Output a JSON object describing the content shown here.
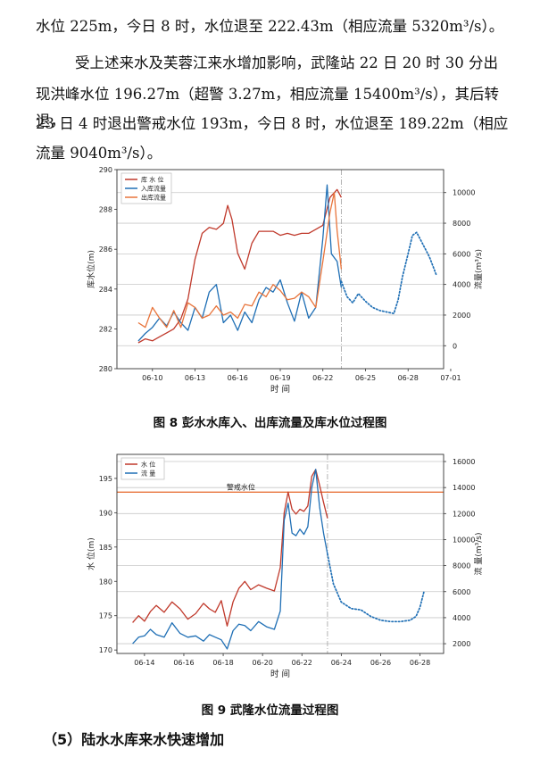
{
  "text": {
    "line1": "水位 225m，今日 8 时，水位退至 222.43m（相应流量 5320m³/s）。",
    "line2": "受上述来水及芙蓉江来水增加影响，武隆站 22 日 20 时 30 分出",
    "line3": "现洪峰水位 196.27m（超警 3.27m，相应流量 15400m³/s），其后转退，",
    "line4": "23 日 4 时退出警戒水位 193m，今日 8 时，水位退至 189.22m（相应",
    "line5": "流量 9040m³/s）。",
    "caption8": "图 8    彭水水库入、出库流量及库水位过程图",
    "caption9": "图 9    武隆水位流量过程图",
    "section_heading": "（5）陆水水库来水快速增加"
  },
  "chart_data": [
    {
      "type": "line",
      "title": "",
      "xlabel": "时 间",
      "ylabel_left": "库水位(m)",
      "ylabel_right": "流量(m³/s)",
      "ylim_left": [
        280,
        290
      ],
      "ylim_right": [
        -1500,
        11500
      ],
      "yticks_left": [
        280,
        282,
        284,
        286,
        288,
        290
      ],
      "yticks_right": [
        0,
        2000,
        4000,
        6000,
        8000,
        10000
      ],
      "xlim": [
        -1.5,
        21.5
      ],
      "xticks": [
        1,
        4,
        7,
        10,
        13,
        16,
        19,
        22
      ],
      "xtick_labels": [
        "06-10",
        "06-13",
        "06-16",
        "06-19",
        "06-22",
        "06-25",
        "06-28",
        "07-01"
      ],
      "legend_position": "top-left",
      "forecast_start_x": 14.3,
      "colors": {
        "level": "#c0392b",
        "inflow": "#1f6fb5",
        "outflow": "#e8743b"
      },
      "series": [
        {
          "name": "库 水 位",
          "axis": "left",
          "color": "#c0392b",
          "x": [
            0,
            0.5,
            1,
            1.5,
            2,
            2.5,
            3,
            3.5,
            4,
            4.5,
            5,
            5.5,
            6,
            6.3,
            6.6,
            7,
            7.5,
            8,
            8.5,
            9,
            9.5,
            10,
            10.5,
            11,
            11.5,
            12,
            12.5,
            13,
            13.5,
            14,
            14.3
          ],
          "y": [
            281.3,
            281.5,
            281.4,
            281.6,
            281.8,
            282.0,
            282.5,
            283.5,
            285.5,
            286.8,
            287.1,
            287.0,
            287.3,
            288.2,
            287.5,
            285.8,
            285.0,
            286.3,
            286.9,
            286.9,
            286.9,
            286.7,
            286.8,
            286.7,
            286.8,
            286.8,
            287.0,
            287.2,
            288.6,
            289.0,
            288.6
          ]
        },
        {
          "name": "入库流量",
          "axis": "right",
          "color": "#1f6fb5",
          "x": [
            0,
            0.5,
            1,
            1.5,
            2,
            2.5,
            3,
            3.5,
            4,
            4.5,
            5,
            5.5,
            6,
            6.5,
            7,
            7.5,
            8,
            8.5,
            9,
            9.5,
            10,
            10.5,
            11,
            11.5,
            12,
            12.5,
            13,
            13.3,
            13.6,
            14,
            14.3
          ],
          "y": [
            300,
            800,
            1200,
            1800,
            1300,
            2200,
            1500,
            1000,
            2500,
            1800,
            3500,
            4000,
            1500,
            2000,
            1000,
            2200,
            1500,
            3000,
            3800,
            3500,
            4300,
            2800,
            1600,
            3500,
            1800,
            2500,
            7000,
            10500,
            6000,
            5500,
            3800
          ]
        },
        {
          "name": "出库流量",
          "axis": "right",
          "color": "#e8743b",
          "x": [
            0,
            0.5,
            1,
            1.5,
            2,
            2.5,
            3,
            3.5,
            4,
            4.5,
            5,
            5.5,
            6,
            6.5,
            7,
            7.5,
            8,
            8.5,
            9,
            9.5,
            10,
            10.5,
            11,
            11.5,
            12,
            12.5,
            13,
            13.5,
            13.8,
            14,
            14.3
          ],
          "y": [
            1500,
            1200,
            2500,
            1800,
            1200,
            2300,
            1200,
            2800,
            2500,
            1800,
            2000,
            2600,
            2000,
            2200,
            1800,
            2700,
            2600,
            3500,
            3200,
            4000,
            3600,
            3000,
            3100,
            3500,
            3200,
            2500,
            5500,
            8700,
            10000,
            7500,
            5000
          ]
        },
        {
          "name": "",
          "axis": "right",
          "color": "#1f6fb5",
          "style": "dotted",
          "x": [
            14.3,
            14.7,
            15.1,
            15.5,
            16,
            16.5,
            17,
            17.5,
            18,
            18.3,
            18.6,
            19,
            19.3,
            19.6,
            20,
            20.5,
            21
          ],
          "y": [
            4200,
            3200,
            2800,
            3400,
            2900,
            2500,
            2300,
            2200,
            2100,
            3000,
            4500,
            6000,
            7200,
            7400,
            6700,
            5800,
            4600
          ]
        }
      ]
    },
    {
      "type": "line",
      "title": "",
      "xlabel": "时 间",
      "ylabel_left": "水 位(m)",
      "ylabel_right": "流 量(m³/s)",
      "ylim_left": [
        169.5,
        198.5
      ],
      "ylim_right": [
        1250,
        16550
      ],
      "yticks_left": [
        170,
        175,
        180,
        185,
        190,
        195
      ],
      "yticks_right": [
        2000,
        4000,
        6000,
        8000,
        10000,
        12000,
        14000,
        16000
      ],
      "xlim": [
        -1.4,
        15.2
      ],
      "xticks": [
        0,
        2,
        4,
        6,
        8,
        10,
        12,
        14
      ],
      "xtick_labels": [
        "06-14",
        "06-16",
        "06-18",
        "06-20",
        "06-22",
        "06-24",
        "06-26",
        "06-28"
      ],
      "legend_position": "top-left",
      "forecast_start_x": 9.3,
      "warning_level": 193,
      "warning_label": "警戒水位",
      "colors": {
        "level": "#c0392b",
        "flow": "#1f6fb5",
        "warning": "#e8743b"
      },
      "series": [
        {
          "name": "水 位",
          "axis": "left",
          "color": "#c0392b",
          "x": [
            -0.6,
            -0.3,
            0,
            0.3,
            0.6,
            1,
            1.4,
            1.8,
            2.2,
            2.6,
            3,
            3.3,
            3.6,
            3.9,
            4.2,
            4.5,
            4.8,
            5.1,
            5.4,
            5.8,
            6.2,
            6.6,
            6.9,
            7.1,
            7.3,
            7.5,
            7.7,
            7.9,
            8.1,
            8.3,
            8.5,
            8.7,
            8.9,
            9.1,
            9.3
          ],
          "y": [
            174,
            175,
            174.2,
            175.6,
            176.5,
            175.5,
            177,
            176,
            174.5,
            175.3,
            176.8,
            176,
            175.5,
            177.2,
            173.5,
            177,
            179,
            180,
            178.8,
            179.5,
            179,
            178.6,
            182,
            190,
            193,
            190.5,
            189.8,
            190.5,
            190.2,
            191,
            195.3,
            196.3,
            194,
            191.5,
            189.2
          ]
        },
        {
          "name": "流 量",
          "axis": "right",
          "color": "#1f6fb5",
          "x": [
            -0.6,
            -0.3,
            0,
            0.3,
            0.6,
            1,
            1.4,
            1.8,
            2.2,
            2.6,
            3,
            3.3,
            3.6,
            3.9,
            4.2,
            4.5,
            4.8,
            5.1,
            5.4,
            5.8,
            6.2,
            6.6,
            6.9,
            7.1,
            7.3,
            7.5,
            7.7,
            7.9,
            8.1,
            8.3,
            8.5,
            8.7,
            8.9,
            9.1,
            9.3
          ],
          "y": [
            2000,
            2500,
            2600,
            3100,
            2700,
            2500,
            3600,
            2800,
            2500,
            2600,
            2200,
            2700,
            2500,
            2300,
            1600,
            3000,
            3500,
            3400,
            3000,
            3700,
            3300,
            3100,
            4500,
            11500,
            12800,
            10500,
            10300,
            10800,
            10400,
            11000,
            14000,
            15400,
            12500,
            10500,
            8900
          ]
        },
        {
          "name": "",
          "axis": "right",
          "color": "#1f6fb5",
          "style": "dotted",
          "x": [
            9.3,
            9.6,
            10,
            10.5,
            11,
            11.5,
            12,
            12.5,
            13,
            13.5,
            13.8,
            14,
            14.2
          ],
          "y": [
            8900,
            6600,
            5200,
            4700,
            4600,
            4100,
            3800,
            3700,
            3700,
            3800,
            4100,
            4800,
            6000
          ]
        }
      ]
    }
  ]
}
